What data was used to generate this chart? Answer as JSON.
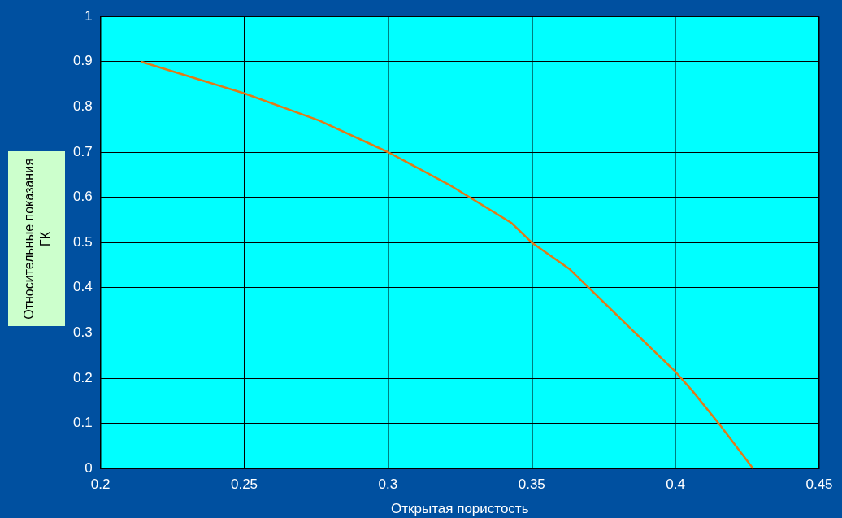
{
  "chart_data": {
    "type": "line",
    "xlabel": "Открытая пористость",
    "ylabel": "Относительные показания ГК",
    "x": [
      0.214,
      0.25,
      0.276,
      0.3,
      0.322,
      0.343,
      0.35,
      0.363,
      0.386,
      0.4,
      0.406,
      0.415,
      0.427
    ],
    "series": [
      {
        "color": "#e07a18",
        "values": [
          0.9,
          0.83,
          0.77,
          0.7,
          0.625,
          0.543,
          0.5,
          0.442,
          0.3,
          0.214,
          0.171,
          0.1,
          0
        ]
      }
    ],
    "xlim": [
      0.2,
      0.45
    ],
    "xticks": [
      0.2,
      0.25,
      0.3,
      0.35,
      0.4,
      0.45
    ],
    "ylim": [
      0,
      1
    ],
    "yticks": [
      0,
      0.1,
      0.2,
      0.3,
      0.4,
      0.5,
      0.6,
      0.7,
      0.8,
      0.9,
      1
    ],
    "grid": true,
    "legend": false,
    "marker": "none",
    "line_style": "solid"
  }
}
